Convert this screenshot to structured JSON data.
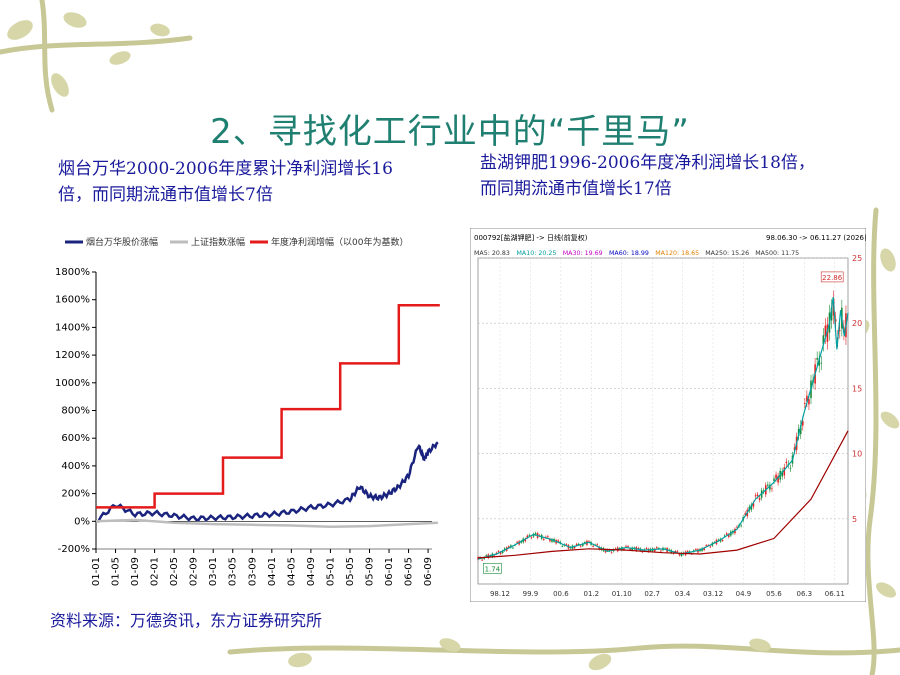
{
  "slide": {
    "title": "2、寻找化工行业中的“千里马”",
    "caption_left": "烟台万华2000-2006年度累计净利润增长16倍，而同期流通市值增长7倍",
    "caption_right": "盐湖钾肥1996-2006年度净利润增长18倍，而同期流通市值增长17倍",
    "source": "资料来源：万德资讯，东方证券研究所"
  },
  "colors": {
    "title": "#1f7f70",
    "caption": "#1a1a9c",
    "stock_line": "#1a237e",
    "index_line": "#bdbdbd",
    "profit_line": "#e51b1b",
    "decor_vine": "#c8c896"
  },
  "chart_data": [
    {
      "type": "line",
      "legend": [
        "烟台万华股价涨幅",
        "上证指数涨幅",
        "年度净利润增幅（以00年为基数）"
      ],
      "legend_position": "top",
      "y_ticks": [
        "1800%",
        "1600%",
        "1400%",
        "1200%",
        "1000%",
        "800%",
        "600%",
        "400%",
        "200%",
        "0%",
        "-200%"
      ],
      "ylim": [
        -200,
        1800
      ],
      "x_ticks": [
        "01-01",
        "01-05",
        "01-09",
        "02-01",
        "02-05",
        "02-09",
        "03-01",
        "03-05",
        "03-09",
        "04-01",
        "04-05",
        "04-09",
        "05-01",
        "05-05",
        "05-09",
        "06-01",
        "06-05",
        "06-09"
      ],
      "series": [
        {
          "name": "烟台万华股价涨幅",
          "x": [
            0,
            1.0,
            2.0,
            3.0,
            4.0,
            5.0,
            6.0,
            7.0,
            8.0,
            9.0,
            10.0,
            11.0,
            12.0,
            13.0,
            13.5,
            14.0,
            14.5,
            15.0,
            15.5,
            16.0,
            16.5,
            16.8,
            17.0,
            17.5
          ],
          "values": [
            0,
            120,
            50,
            60,
            40,
            20,
            25,
            30,
            40,
            50,
            70,
            100,
            120,
            160,
            250,
            180,
            170,
            200,
            250,
            330,
            550,
            450,
            500,
            570
          ]
        },
        {
          "name": "上证指数涨幅",
          "x": [
            0,
            2,
            4,
            6,
            8,
            10,
            12,
            14,
            16,
            17.5
          ],
          "values": [
            0,
            10,
            -10,
            -20,
            -25,
            -30,
            -40,
            -35,
            -20,
            -10
          ]
        },
        {
          "name": "年度净利润增幅（以00年为基数）",
          "x": [
            0,
            3,
            3,
            6.5,
            6.5,
            9.5,
            9.5,
            12.5,
            12.5,
            15.5,
            15.5,
            17.6
          ],
          "values": [
            100,
            100,
            200,
            200,
            460,
            460,
            810,
            810,
            1140,
            1140,
            1560,
            1560
          ]
        }
      ]
    },
    {
      "type": "line",
      "header": "000792[盐湖钾肥] -> 日线(前复权)",
      "date_range": "98.06.30 -> 06.11.27 (2026日)",
      "ma_labels": [
        {
          "label": "MA5: 20.83",
          "color": "#333333"
        },
        {
          "label": "MA10: 20.25",
          "color": "#00a0a0"
        },
        {
          "label": "MA30: 19.69",
          "color": "#c000c0"
        },
        {
          "label": "MA60: 18.99",
          "color": "#0000c0"
        },
        {
          "label": "MA120: 18.65",
          "color": "#e08000"
        },
        {
          "label": "MA250: 15.26",
          "color": "#333333"
        },
        {
          "label": "MA500: 11.75",
          "color": "#333333"
        }
      ],
      "y_ticks": [
        "25",
        "20",
        "15",
        "10",
        "5"
      ],
      "ylim": [
        0,
        25
      ],
      "x_ticks": [
        "98.12",
        "99.9",
        "00.6",
        "01.2",
        "01.10",
        "02.7",
        "03.4",
        "03.12",
        "04.9",
        "05.6",
        "06.3",
        "06.11"
      ],
      "annotations": [
        "22.86",
        "1.74"
      ],
      "series": [
        {
          "name": "MA5",
          "x": [
            0,
            5,
            10,
            15,
            20,
            25,
            30,
            35,
            40,
            45,
            50,
            55,
            60,
            65,
            70,
            75,
            80,
            85,
            88,
            90,
            92,
            94,
            95,
            96,
            97,
            98,
            99,
            100
          ],
          "values": [
            1.9,
            2.3,
            3.0,
            3.8,
            3.4,
            2.8,
            3.2,
            2.5,
            2.8,
            2.6,
            2.7,
            2.3,
            2.6,
            3.3,
            4.2,
            6.5,
            7.8,
            9.5,
            13,
            15,
            17,
            19,
            20,
            22,
            18,
            21,
            19,
            20.8
          ]
        },
        {
          "name": "MA500",
          "x": [
            0,
            10,
            20,
            30,
            40,
            50,
            60,
            70,
            80,
            90,
            100
          ],
          "values": [
            2.0,
            2.2,
            2.5,
            2.7,
            2.6,
            2.4,
            2.3,
            2.6,
            3.5,
            6.5,
            11.75
          ]
        }
      ]
    }
  ]
}
